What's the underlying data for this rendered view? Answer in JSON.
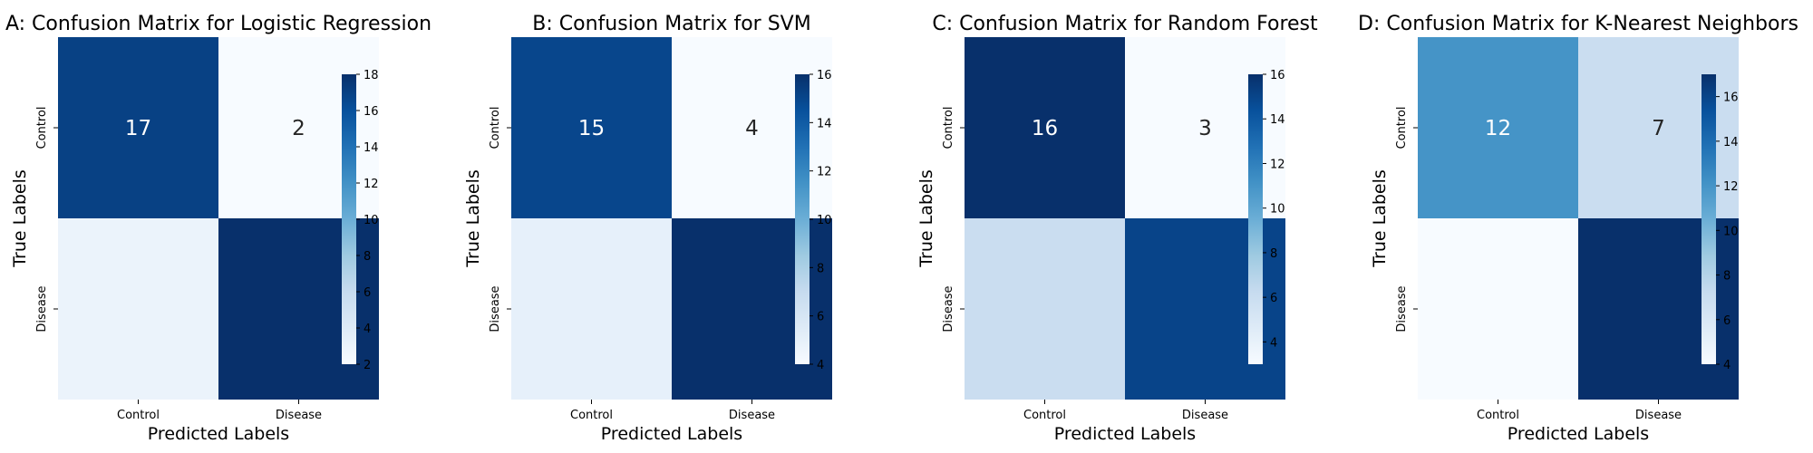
{
  "chart_data": [
    {
      "type": "heatmap",
      "title": "A: Confusion Matrix for Logistic Regression",
      "xlabel": "Predicted Labels",
      "ylabel": "True Labels",
      "x_categories": [
        "Control",
        "Disease"
      ],
      "y_categories": [
        "Control",
        "Disease"
      ],
      "values": [
        [
          17,
          2
        ],
        [
          3,
          18
        ]
      ],
      "annotations": [
        [
          "17",
          "2"
        ],
        [
          "",
          ""
        ]
      ],
      "colorbar": {
        "min": 2,
        "max": 18,
        "ticks": [
          2,
          4,
          6,
          8,
          10,
          12,
          14,
          16,
          18
        ]
      }
    },
    {
      "type": "heatmap",
      "title": "B: Confusion Matrix for SVM",
      "xlabel": "Predicted Labels",
      "ylabel": "True Labels",
      "x_categories": [
        "Control",
        "Disease"
      ],
      "y_categories": [
        "Control",
        "Disease"
      ],
      "values": [
        [
          15,
          4
        ],
        [
          5,
          16
        ]
      ],
      "annotations": [
        [
          "15",
          "4"
        ],
        [
          "",
          ""
        ]
      ],
      "colorbar": {
        "min": 4,
        "max": 16,
        "ticks": [
          4,
          6,
          8,
          10,
          12,
          14,
          16
        ]
      }
    },
    {
      "type": "heatmap",
      "title": "C: Confusion Matrix for Random Forest",
      "xlabel": "Predicted Labels",
      "ylabel": "True Labels",
      "x_categories": [
        "Control",
        "Disease"
      ],
      "y_categories": [
        "Control",
        "Disease"
      ],
      "values": [
        [
          16,
          3
        ],
        [
          6,
          15
        ]
      ],
      "annotations": [
        [
          "16",
          "3"
        ],
        [
          "",
          ""
        ]
      ],
      "colorbar": {
        "min": 3,
        "max": 16,
        "ticks": [
          4,
          6,
          8,
          10,
          12,
          14,
          16
        ]
      }
    },
    {
      "type": "heatmap",
      "title": "D: Confusion Matrix for K-Nearest Neighbors",
      "xlabel": "Predicted Labels",
      "ylabel": "True Labels",
      "x_categories": [
        "Control",
        "Disease"
      ],
      "y_categories": [
        "Control",
        "Disease"
      ],
      "values": [
        [
          12,
          7
        ],
        [
          4,
          17
        ]
      ],
      "annotations": [
        [
          "12",
          "7"
        ],
        [
          "",
          ""
        ]
      ],
      "colorbar": {
        "min": 4,
        "max": 17,
        "ticks": [
          4,
          6,
          8,
          10,
          12,
          14,
          16
        ]
      }
    }
  ],
  "colormap": [
    "#f7fbff",
    "#deebf7",
    "#c6dbef",
    "#9ecae1",
    "#6baed6",
    "#4292c6",
    "#2171b5",
    "#08519c",
    "#08306b"
  ]
}
